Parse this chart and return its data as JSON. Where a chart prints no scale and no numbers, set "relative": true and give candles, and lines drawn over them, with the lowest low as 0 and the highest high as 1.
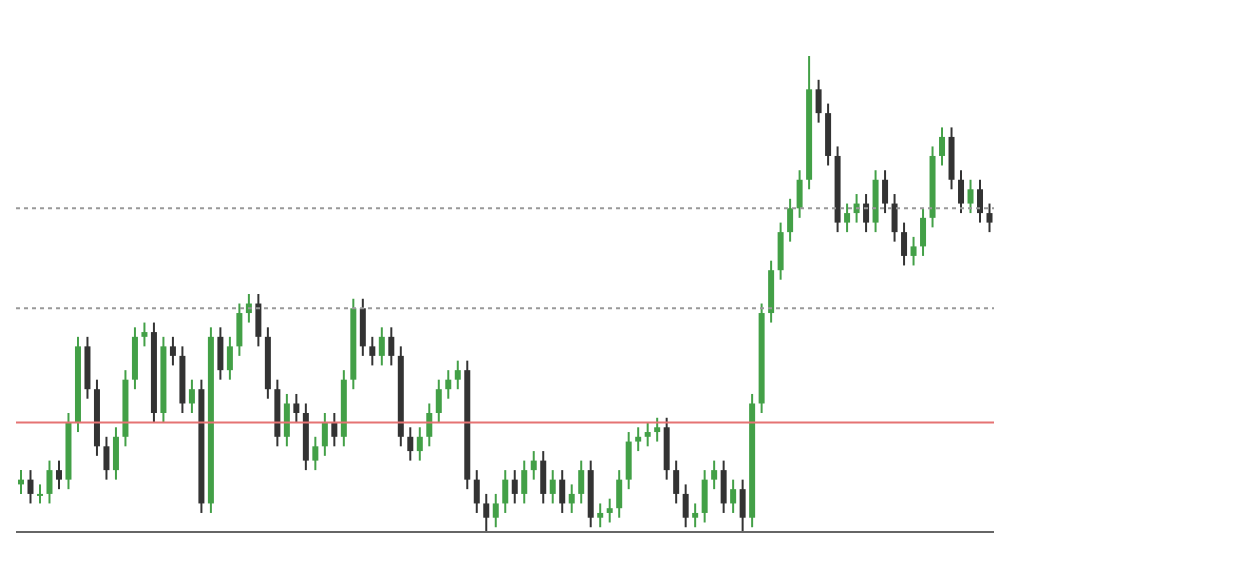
{
  "chart_data": {
    "type": "candlestick",
    "relative": true,
    "categories": [
      null,
      null,
      null,
      null,
      null,
      null,
      null,
      null,
      null,
      null,
      null,
      null,
      null,
      null,
      null,
      null,
      null,
      null,
      null,
      null,
      null,
      null,
      null,
      null,
      null,
      null,
      null,
      null,
      null,
      null,
      null,
      null,
      null,
      null,
      null,
      null,
      null,
      null,
      null,
      null,
      null,
      null,
      null,
      null,
      null,
      null,
      null,
      null,
      null,
      null,
      null,
      null,
      null,
      null,
      null,
      null,
      null,
      null,
      null,
      null,
      null,
      null,
      null,
      null,
      null,
      null,
      null,
      null,
      null,
      null,
      null,
      null,
      null,
      null,
      null,
      null,
      null,
      null,
      null,
      null,
      null,
      null,
      null,
      null,
      null,
      null,
      null,
      null,
      null,
      null,
      null,
      null,
      null,
      null,
      null,
      null,
      null,
      null,
      null,
      null,
      null,
      null,
      null
    ],
    "ohlc": [
      [
        0.1,
        0.13,
        0.08,
        0.11
      ],
      [
        0.11,
        0.13,
        0.06,
        0.08
      ],
      [
        0.08,
        0.1,
        0.06,
        0.08
      ],
      [
        0.08,
        0.15,
        0.06,
        0.13
      ],
      [
        0.13,
        0.15,
        0.09,
        0.11
      ],
      [
        0.11,
        0.25,
        0.09,
        0.23
      ],
      [
        0.23,
        0.41,
        0.21,
        0.39
      ],
      [
        0.39,
        0.41,
        0.28,
        0.3
      ],
      [
        0.3,
        0.32,
        0.16,
        0.18
      ],
      [
        0.18,
        0.2,
        0.11,
        0.13
      ],
      [
        0.13,
        0.22,
        0.11,
        0.2
      ],
      [
        0.2,
        0.34,
        0.18,
        0.32
      ],
      [
        0.32,
        0.43,
        0.3,
        0.41
      ],
      [
        0.41,
        0.44,
        0.39,
        0.42
      ],
      [
        0.42,
        0.44,
        0.23,
        0.25
      ],
      [
        0.25,
        0.41,
        0.23,
        0.39
      ],
      [
        0.39,
        0.41,
        0.35,
        0.37
      ],
      [
        0.37,
        0.39,
        0.25,
        0.27
      ],
      [
        0.27,
        0.32,
        0.25,
        0.3
      ],
      [
        0.3,
        0.32,
        0.04,
        0.06
      ],
      [
        0.06,
        0.43,
        0.04,
        0.41
      ],
      [
        0.41,
        0.43,
        0.32,
        0.34
      ],
      [
        0.34,
        0.41,
        0.32,
        0.39
      ],
      [
        0.39,
        0.48,
        0.37,
        0.46
      ],
      [
        0.46,
        0.5,
        0.44,
        0.48
      ],
      [
        0.48,
        0.5,
        0.39,
        0.41
      ],
      [
        0.41,
        0.43,
        0.28,
        0.3
      ],
      [
        0.3,
        0.32,
        0.18,
        0.2
      ],
      [
        0.2,
        0.29,
        0.18,
        0.27
      ],
      [
        0.27,
        0.29,
        0.23,
        0.25
      ],
      [
        0.25,
        0.27,
        0.13,
        0.15
      ],
      [
        0.15,
        0.2,
        0.13,
        0.18
      ],
      [
        0.18,
        0.25,
        0.16,
        0.23
      ],
      [
        0.23,
        0.25,
        0.18,
        0.2
      ],
      [
        0.2,
        0.34,
        0.18,
        0.32
      ],
      [
        0.32,
        0.49,
        0.3,
        0.47
      ],
      [
        0.47,
        0.49,
        0.37,
        0.39
      ],
      [
        0.39,
        0.41,
        0.35,
        0.37
      ],
      [
        0.37,
        0.43,
        0.35,
        0.41
      ],
      [
        0.41,
        0.43,
        0.35,
        0.37
      ],
      [
        0.37,
        0.39,
        0.18,
        0.2
      ],
      [
        0.2,
        0.22,
        0.15,
        0.17
      ],
      [
        0.17,
        0.22,
        0.15,
        0.2
      ],
      [
        0.2,
        0.27,
        0.18,
        0.25
      ],
      [
        0.25,
        0.32,
        0.23,
        0.3
      ],
      [
        0.3,
        0.34,
        0.28,
        0.32
      ],
      [
        0.32,
        0.36,
        0.3,
        0.34
      ],
      [
        0.34,
        0.36,
        0.09,
        0.11
      ],
      [
        0.11,
        0.13,
        0.04,
        0.06
      ],
      [
        0.06,
        0.08,
        0.0,
        0.03
      ],
      [
        0.03,
        0.08,
        0.01,
        0.06
      ],
      [
        0.06,
        0.13,
        0.04,
        0.11
      ],
      [
        0.11,
        0.13,
        0.06,
        0.08
      ],
      [
        0.08,
        0.15,
        0.06,
        0.13
      ],
      [
        0.13,
        0.17,
        0.11,
        0.15
      ],
      [
        0.15,
        0.17,
        0.06,
        0.08
      ],
      [
        0.08,
        0.13,
        0.06,
        0.11
      ],
      [
        0.11,
        0.13,
        0.04,
        0.06
      ],
      [
        0.06,
        0.1,
        0.04,
        0.08
      ],
      [
        0.08,
        0.15,
        0.06,
        0.13
      ],
      [
        0.13,
        0.15,
        0.01,
        0.03
      ],
      [
        0.03,
        0.06,
        0.01,
        0.04
      ],
      [
        0.04,
        0.07,
        0.02,
        0.05
      ],
      [
        0.05,
        0.13,
        0.03,
        0.11
      ],
      [
        0.11,
        0.21,
        0.09,
        0.19
      ],
      [
        0.19,
        0.22,
        0.17,
        0.2
      ],
      [
        0.2,
        0.23,
        0.18,
        0.21
      ],
      [
        0.21,
        0.24,
        0.19,
        0.22
      ],
      [
        0.22,
        0.24,
        0.11,
        0.13
      ],
      [
        0.13,
        0.15,
        0.06,
        0.08
      ],
      [
        0.08,
        0.1,
        0.01,
        0.03
      ],
      [
        0.03,
        0.06,
        0.01,
        0.04
      ],
      [
        0.04,
        0.13,
        0.02,
        0.11
      ],
      [
        0.11,
        0.15,
        0.09,
        0.13
      ],
      [
        0.13,
        0.15,
        0.04,
        0.06
      ],
      [
        0.06,
        0.11,
        0.04,
        0.09
      ],
      [
        0.09,
        0.11,
        0.0,
        0.03
      ],
      [
        0.03,
        0.29,
        0.01,
        0.27
      ],
      [
        0.27,
        0.48,
        0.25,
        0.46
      ],
      [
        0.46,
        0.57,
        0.44,
        0.55
      ],
      [
        0.55,
        0.65,
        0.53,
        0.63
      ],
      [
        0.63,
        0.7,
        0.61,
        0.68
      ],
      [
        0.68,
        0.76,
        0.66,
        0.74
      ],
      [
        0.74,
        1.0,
        0.72,
        0.93
      ],
      [
        0.93,
        0.95,
        0.86,
        0.88
      ],
      [
        0.88,
        0.9,
        0.77,
        0.79
      ],
      [
        0.79,
        0.81,
        0.63,
        0.65
      ],
      [
        0.65,
        0.69,
        0.63,
        0.67
      ],
      [
        0.67,
        0.71,
        0.65,
        0.69
      ],
      [
        0.69,
        0.71,
        0.63,
        0.65
      ],
      [
        0.65,
        0.76,
        0.63,
        0.74
      ],
      [
        0.74,
        0.76,
        0.67,
        0.69
      ],
      [
        0.69,
        0.71,
        0.61,
        0.63
      ],
      [
        0.63,
        0.65,
        0.56,
        0.58
      ],
      [
        0.58,
        0.62,
        0.56,
        0.6
      ],
      [
        0.6,
        0.68,
        0.58,
        0.66
      ],
      [
        0.66,
        0.81,
        0.64,
        0.79
      ],
      [
        0.79,
        0.85,
        0.77,
        0.83
      ],
      [
        0.83,
        0.85,
        0.72,
        0.74
      ],
      [
        0.74,
        0.76,
        0.67,
        0.69
      ],
      [
        0.69,
        0.74,
        0.67,
        0.72
      ],
      [
        0.72,
        0.74,
        0.65,
        0.67
      ],
      [
        0.67,
        0.69,
        0.63,
        0.65
      ]
    ],
    "ref_lines": [
      {
        "axis": "y",
        "value": 0.68,
        "color": "#999999",
        "line_style": "dotted"
      },
      {
        "axis": "y",
        "value": 0.47,
        "color": "#999999",
        "line_style": "dotted"
      },
      {
        "axis": "y",
        "value": 0.23,
        "color": "#e57373",
        "line_style": "solid"
      }
    ]
  }
}
